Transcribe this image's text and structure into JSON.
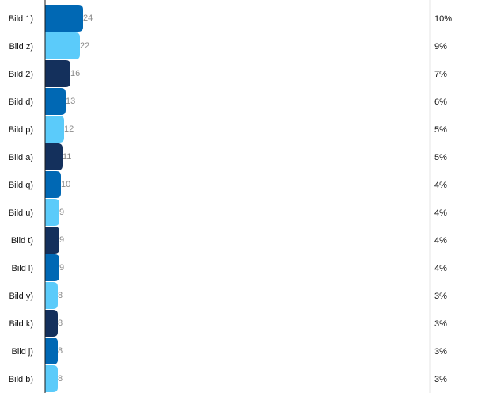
{
  "chart_data": {
    "type": "bar",
    "orientation": "horizontal",
    "title": "",
    "xlabel": "",
    "ylabel": "",
    "categories": [
      "Bild 1)",
      "Bild z)",
      "Bild 2)",
      "Bild d)",
      "Bild p)",
      "Bild a)",
      "Bild q)",
      "Bild u)",
      "Bild t)",
      "Bild l)",
      "Bild y)",
      "Bild k)",
      "Bild j)",
      "Bild b)"
    ],
    "values": [
      24,
      22,
      16,
      13,
      12,
      11,
      10,
      9,
      9,
      9,
      8,
      8,
      8,
      8
    ],
    "percentages": [
      "10%",
      "9%",
      "7%",
      "6%",
      "5%",
      "5%",
      "4%",
      "4%",
      "4%",
      "4%",
      "3%",
      "3%",
      "3%",
      "3%"
    ],
    "value_labels": [
      "24",
      "22",
      "16",
      "13",
      "12",
      "11",
      "10",
      "9",
      "9",
      "9",
      "8",
      "8",
      "8",
      "8"
    ],
    "xlim": [
      0,
      240
    ],
    "grid": false,
    "colors": [
      "#0068b4",
      "#5bcbfa",
      "#14305c",
      "#0068b4",
      "#5bcbfa",
      "#14305c",
      "#0068b4",
      "#5bcbfa",
      "#14305c",
      "#0068b4",
      "#5bcbfa",
      "#14305c",
      "#0068b4",
      "#5bcbfa"
    ],
    "axis_color": "#1a1a1a",
    "separator_color": "#e6e6e6"
  }
}
